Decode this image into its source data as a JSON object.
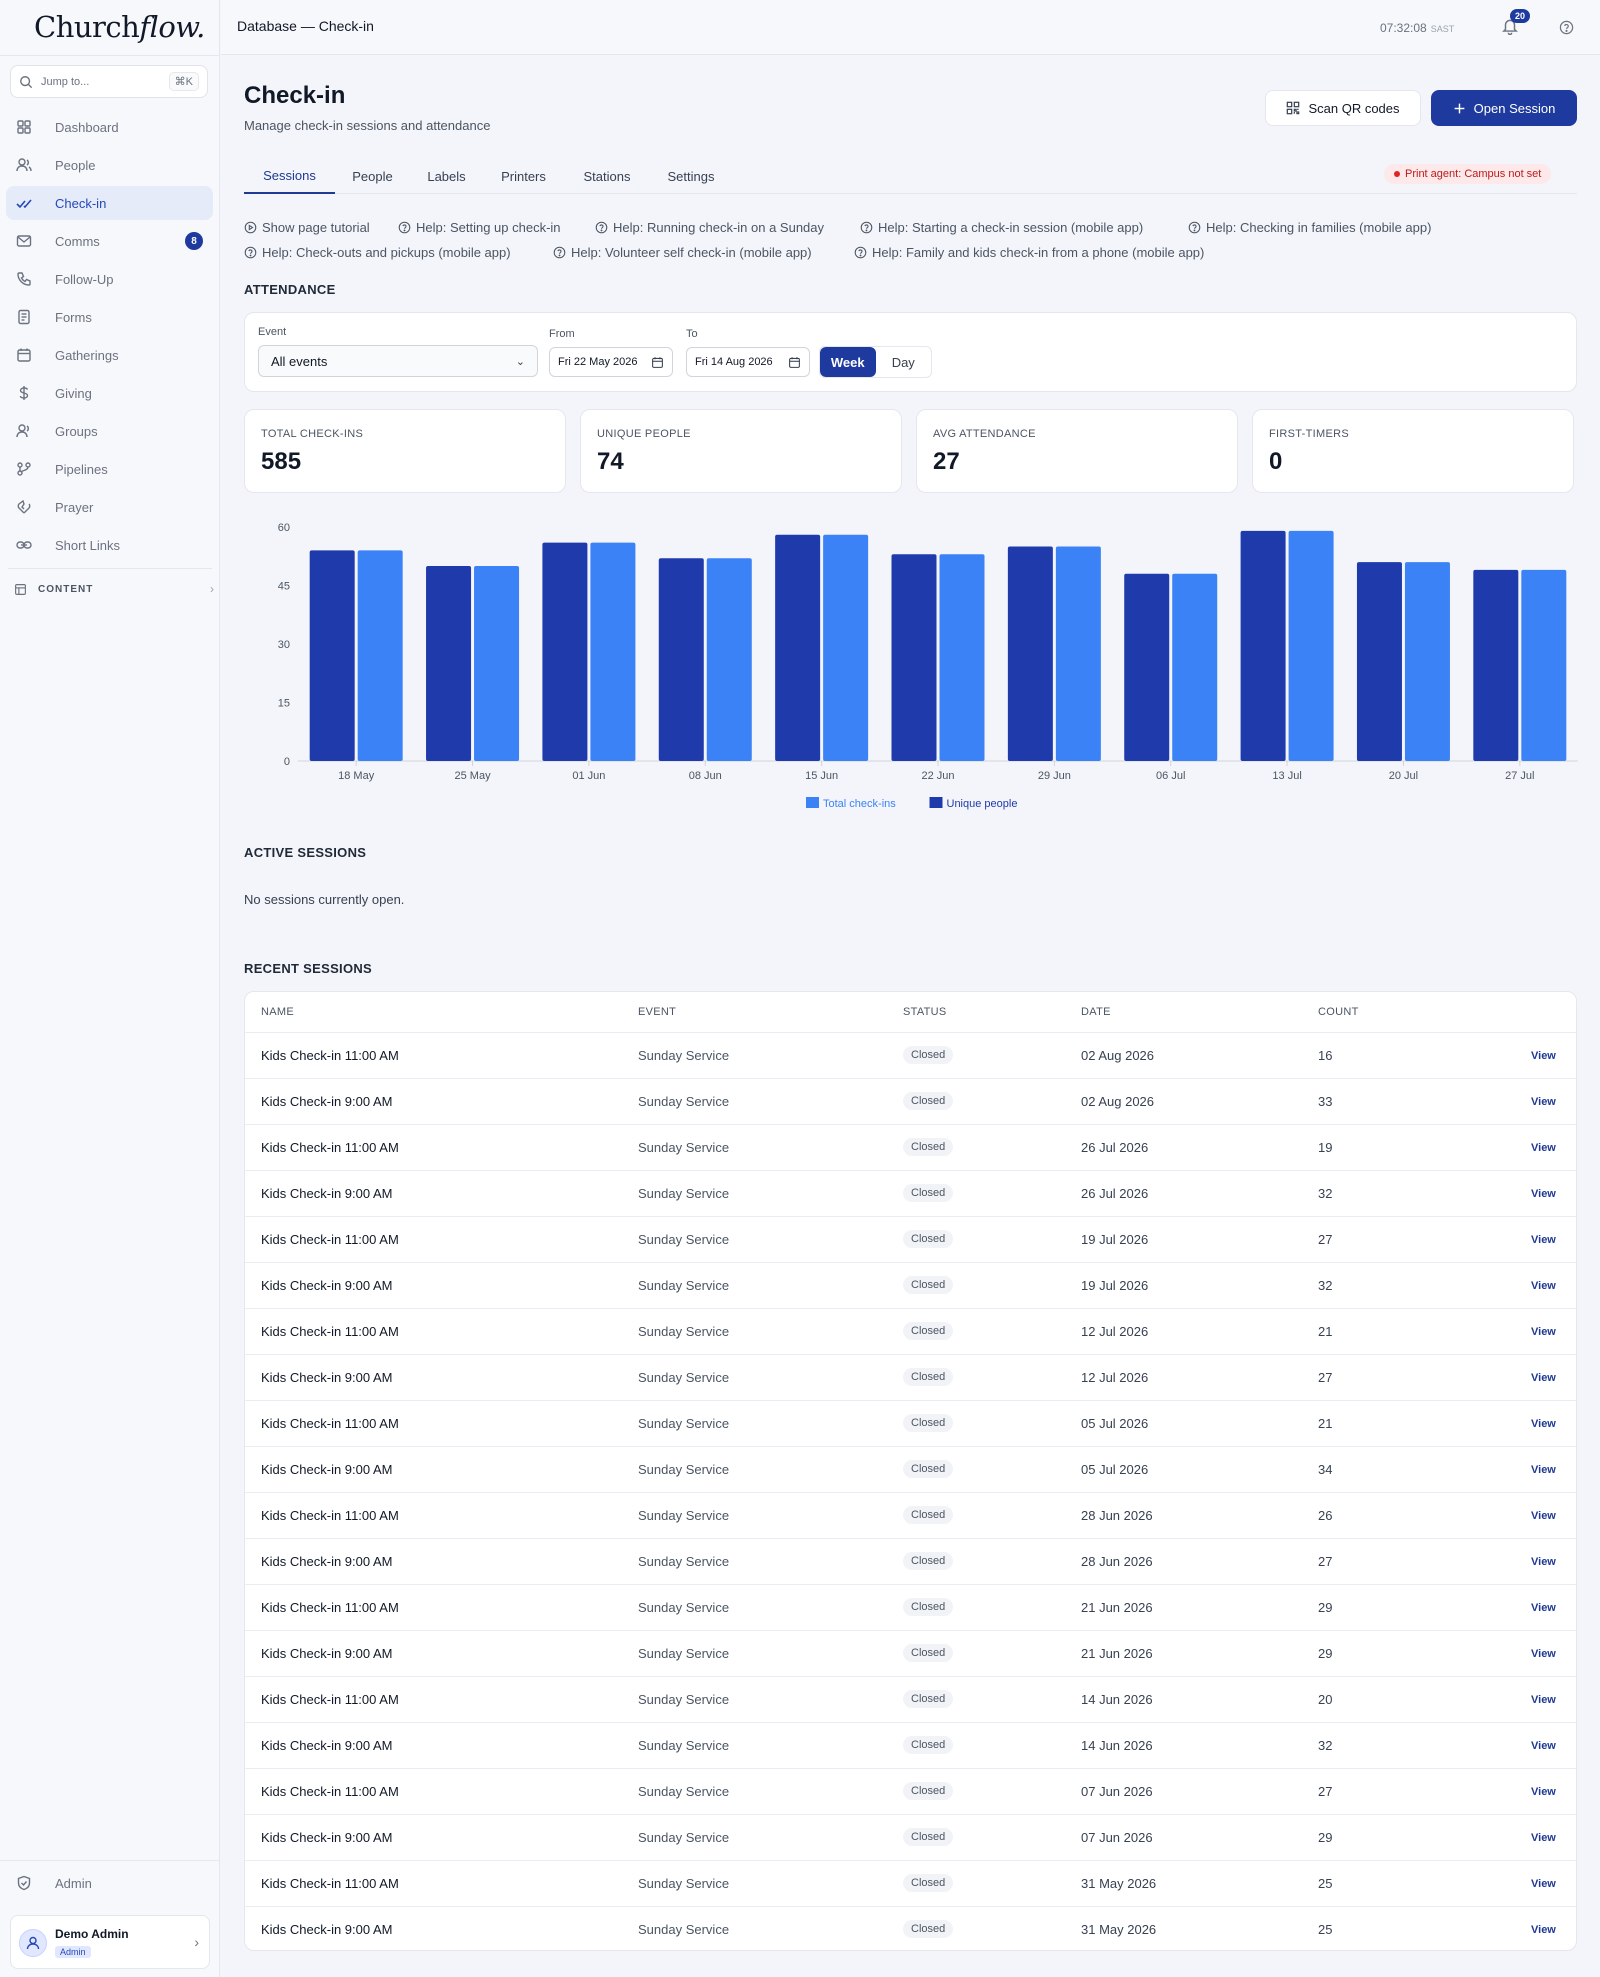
{
  "app": {
    "logo_church": "Church",
    "logo_flow": "flow.",
    "breadcrumb": "Database — Check-in",
    "clock": "07:32:08",
    "timezone": "SAST",
    "notifications_count": "20"
  },
  "sidebar": {
    "jump_placeholder": "Jump to...",
    "jump_shortcut": "⌘K",
    "items": [
      {
        "label": "Dashboard",
        "icon": "dashboard-icon"
      },
      {
        "label": "People",
        "icon": "people-icon"
      },
      {
        "label": "Check-in",
        "icon": "check-icon",
        "active": true
      },
      {
        "label": "Comms",
        "icon": "mail-icon",
        "badge": "8"
      },
      {
        "label": "Follow-Up",
        "icon": "phone-icon"
      },
      {
        "label": "Forms",
        "icon": "form-icon"
      },
      {
        "label": "Gatherings",
        "icon": "calendar-icon"
      },
      {
        "label": "Giving",
        "icon": "dollar-icon"
      },
      {
        "label": "Groups",
        "icon": "groups-icon"
      },
      {
        "label": "Pipelines",
        "icon": "pipeline-icon"
      },
      {
        "label": "Prayer",
        "icon": "prayer-icon"
      },
      {
        "label": "Short Links",
        "icon": "link-icon"
      }
    ],
    "content_section": "CONTENT",
    "admin_label": "Admin",
    "user_name": "Demo Admin",
    "user_role": "Admin"
  },
  "header": {
    "title": "Check-in",
    "subtitle": "Manage check-in sessions and attendance",
    "scan_button": "Scan QR codes",
    "open_button": "Open Session"
  },
  "tabs": [
    "Sessions",
    "People",
    "Labels",
    "Printers",
    "Stations",
    "Settings"
  ],
  "print_agent": "Print agent: Campus not set",
  "help_links": [
    "Show page tutorial",
    "Help: Setting up check-in",
    "Help: Running check-in on a Sunday",
    "Help: Starting a check-in session (mobile app)",
    "Help: Checking in families (mobile app)",
    "Help: Check-outs and pickups (mobile app)",
    "Help: Volunteer self check-in (mobile app)",
    "Help: Family and kids check-in from a phone (mobile app)"
  ],
  "attendance": {
    "heading": "ATTENDANCE",
    "event_label": "Event",
    "event_value": "All events",
    "from_label": "From",
    "from_value": "Fri 22 May 2026",
    "to_label": "To",
    "to_value": "Fri 14 Aug 2026",
    "seg_week": "Week",
    "seg_day": "Day"
  },
  "stats": [
    {
      "label": "TOTAL CHECK-INS",
      "value": "585"
    },
    {
      "label": "UNIQUE PEOPLE",
      "value": "74"
    },
    {
      "label": "AVG ATTENDANCE",
      "value": "27"
    },
    {
      "label": "FIRST-TIMERS",
      "value": "0"
    }
  ],
  "chart_data": {
    "type": "bar",
    "categories": [
      "18 May",
      "25 May",
      "01 Jun",
      "08 Jun",
      "15 Jun",
      "22 Jun",
      "29 Jun",
      "06 Jul",
      "13 Jul",
      "20 Jul",
      "27 Jul"
    ],
    "series": [
      {
        "name": "Unique people",
        "color": "#1e3aab",
        "values": [
          54,
          50,
          56,
          52,
          58,
          53,
          55,
          48,
          59,
          51,
          49
        ]
      },
      {
        "name": "Total check-ins",
        "color": "#3b82f6",
        "values": [
          54,
          50,
          56,
          52,
          58,
          53,
          55,
          48,
          59,
          51,
          49
        ]
      }
    ],
    "legend_order": [
      "Total check-ins",
      "Unique people"
    ],
    "yticks": [
      0,
      15,
      30,
      45,
      60
    ],
    "ylim": [
      0,
      60
    ],
    "legend_position": "bottom-center",
    "grid": false
  },
  "active_sessions": {
    "heading": "ACTIVE SESSIONS",
    "empty_text": "No sessions currently open."
  },
  "recent_sessions": {
    "heading": "RECENT SESSIONS",
    "columns": [
      "NAME",
      "EVENT",
      "STATUS",
      "DATE",
      "COUNT"
    ],
    "view_label": "View",
    "rows": [
      {
        "name": "Kids Check-in 11:00 AM",
        "event": "Sunday Service",
        "status": "Closed",
        "date": "02 Aug 2026",
        "count": "16"
      },
      {
        "name": "Kids Check-in 9:00 AM",
        "event": "Sunday Service",
        "status": "Closed",
        "date": "02 Aug 2026",
        "count": "33"
      },
      {
        "name": "Kids Check-in 11:00 AM",
        "event": "Sunday Service",
        "status": "Closed",
        "date": "26 Jul 2026",
        "count": "19"
      },
      {
        "name": "Kids Check-in 9:00 AM",
        "event": "Sunday Service",
        "status": "Closed",
        "date": "26 Jul 2026",
        "count": "32"
      },
      {
        "name": "Kids Check-in 11:00 AM",
        "event": "Sunday Service",
        "status": "Closed",
        "date": "19 Jul 2026",
        "count": "27"
      },
      {
        "name": "Kids Check-in 9:00 AM",
        "event": "Sunday Service",
        "status": "Closed",
        "date": "19 Jul 2026",
        "count": "32"
      },
      {
        "name": "Kids Check-in 11:00 AM",
        "event": "Sunday Service",
        "status": "Closed",
        "date": "12 Jul 2026",
        "count": "21"
      },
      {
        "name": "Kids Check-in 9:00 AM",
        "event": "Sunday Service",
        "status": "Closed",
        "date": "12 Jul 2026",
        "count": "27"
      },
      {
        "name": "Kids Check-in 11:00 AM",
        "event": "Sunday Service",
        "status": "Closed",
        "date": "05 Jul 2026",
        "count": "21"
      },
      {
        "name": "Kids Check-in 9:00 AM",
        "event": "Sunday Service",
        "status": "Closed",
        "date": "05 Jul 2026",
        "count": "34"
      },
      {
        "name": "Kids Check-in 11:00 AM",
        "event": "Sunday Service",
        "status": "Closed",
        "date": "28 Jun 2026",
        "count": "26"
      },
      {
        "name": "Kids Check-in 9:00 AM",
        "event": "Sunday Service",
        "status": "Closed",
        "date": "28 Jun 2026",
        "count": "27"
      },
      {
        "name": "Kids Check-in 11:00 AM",
        "event": "Sunday Service",
        "status": "Closed",
        "date": "21 Jun 2026",
        "count": "29"
      },
      {
        "name": "Kids Check-in 9:00 AM",
        "event": "Sunday Service",
        "status": "Closed",
        "date": "21 Jun 2026",
        "count": "29"
      },
      {
        "name": "Kids Check-in 11:00 AM",
        "event": "Sunday Service",
        "status": "Closed",
        "date": "14 Jun 2026",
        "count": "20"
      },
      {
        "name": "Kids Check-in 9:00 AM",
        "event": "Sunday Service",
        "status": "Closed",
        "date": "14 Jun 2026",
        "count": "32"
      },
      {
        "name": "Kids Check-in 11:00 AM",
        "event": "Sunday Service",
        "status": "Closed",
        "date": "07 Jun 2026",
        "count": "27"
      },
      {
        "name": "Kids Check-in 9:00 AM",
        "event": "Sunday Service",
        "status": "Closed",
        "date": "07 Jun 2026",
        "count": "29"
      },
      {
        "name": "Kids Check-in 11:00 AM",
        "event": "Sunday Service",
        "status": "Closed",
        "date": "31 May 2026",
        "count": "25"
      },
      {
        "name": "Kids Check-in 9:00 AM",
        "event": "Sunday Service",
        "status": "Closed",
        "date": "31 May 2026",
        "count": "25"
      }
    ]
  }
}
